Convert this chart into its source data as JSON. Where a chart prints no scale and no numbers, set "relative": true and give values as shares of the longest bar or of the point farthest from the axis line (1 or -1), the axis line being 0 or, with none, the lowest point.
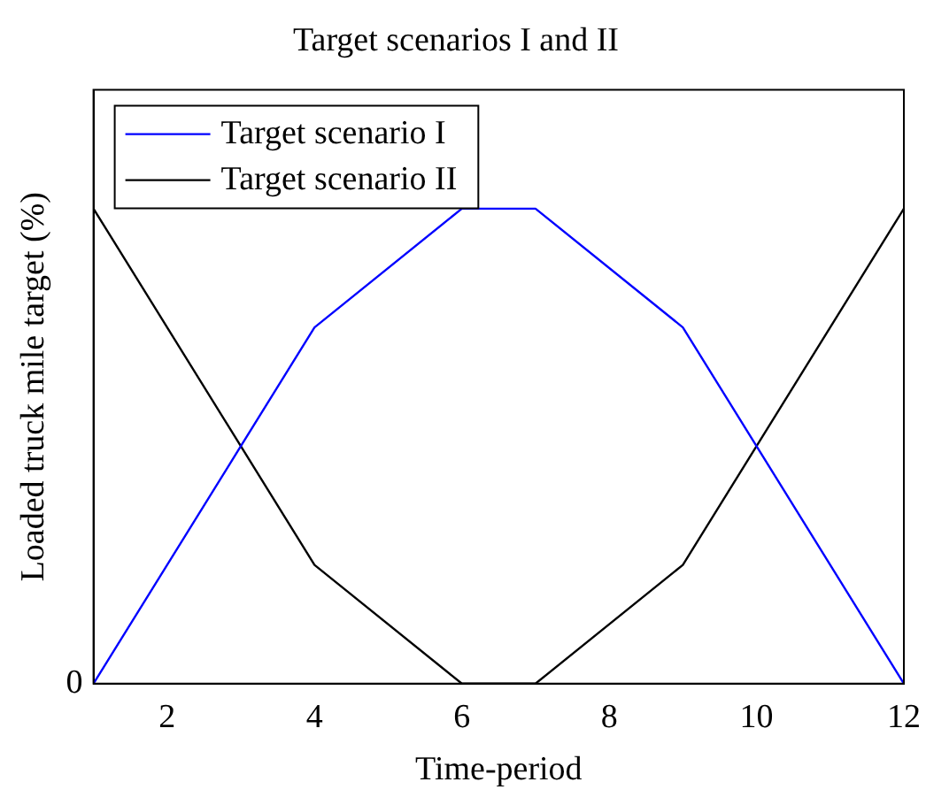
{
  "chart_data": {
    "type": "line",
    "title": "Target scenarios I and II",
    "xlabel": "Time-period",
    "ylabel": "Loaded truck mile target (%)",
    "relative": true,
    "annotations": [
      "0"
    ],
    "xlim": [
      1,
      12
    ],
    "xticks": [
      2,
      4,
      6,
      8,
      10,
      12
    ],
    "legend": "top left",
    "grid": false,
    "marker": "none",
    "line_style": "solid",
    "series": [
      {
        "name": "Target scenario I",
        "color": "#0000ff",
        "x": [
          1,
          4,
          6,
          7,
          9,
          12
        ],
        "values": [
          0,
          0.75,
          1,
          1,
          0.75,
          0
        ]
      },
      {
        "name": "Target scenario II",
        "color": "#000000",
        "x": [
          1,
          4,
          6,
          7,
          9,
          12
        ],
        "values": [
          1,
          0.25,
          0,
          0,
          0.25,
          1
        ]
      }
    ]
  }
}
